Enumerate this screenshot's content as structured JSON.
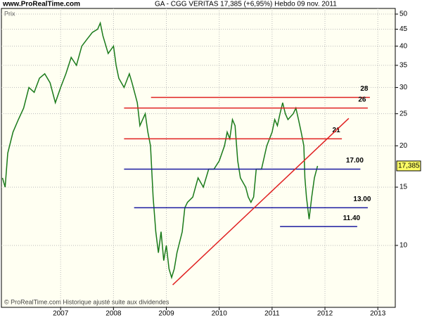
{
  "chart_data": {
    "type": "line",
    "site": "www.ProRealTime.com",
    "title": "GA - CGG VERITAS   17,385 (+6,95%)   Hebdo  09 nov. 2011",
    "y_label": "Prix",
    "footer": "© ProRealTime.com Historique ajusté suite aux dividendes",
    "log_y": true,
    "grid": true,
    "xlim": [
      2005.88,
      2013.33
    ],
    "xticks": [
      2007,
      2008,
      2009,
      2010,
      2011,
      2012,
      2013
    ],
    "ylim": [
      6.5,
      52
    ],
    "yticks": [
      10,
      15,
      20,
      25,
      30,
      35,
      40,
      45,
      50
    ],
    "series": [
      {
        "color": "#1a7a1a",
        "x": [
          2005.9,
          2005.95,
          2006.0,
          2006.1,
          2006.2,
          2006.3,
          2006.4,
          2006.5,
          2006.6,
          2006.7,
          2006.8,
          2006.9,
          2007.0,
          2007.1,
          2007.2,
          2007.3,
          2007.4,
          2007.5,
          2007.6,
          2007.7,
          2007.75,
          2007.8,
          2007.9,
          2008.0,
          2008.05,
          2008.1,
          2008.2,
          2008.3,
          2008.35,
          2008.45,
          2008.5,
          2008.6,
          2008.65,
          2008.7,
          2008.75,
          2008.8,
          2008.85,
          2008.9,
          2008.95,
          2009.0,
          2009.05,
          2009.1,
          2009.15,
          2009.2,
          2009.3,
          2009.35,
          2009.4,
          2009.5,
          2009.6,
          2009.7,
          2009.8,
          2009.9,
          2010.0,
          2010.1,
          2010.15,
          2010.2,
          2010.25,
          2010.3,
          2010.35,
          2010.4,
          2010.5,
          2010.55,
          2010.6,
          2010.65,
          2010.7,
          2010.8,
          2010.9,
          2011.0,
          2011.05,
          2011.1,
          2011.15,
          2011.2,
          2011.25,
          2011.3,
          2011.4,
          2011.45,
          2011.5,
          2011.55,
          2011.6,
          2011.62,
          2011.65,
          2011.7,
          2011.75,
          2011.8,
          2011.86
        ],
        "values": [
          16,
          15,
          19,
          22,
          24,
          26,
          30,
          29,
          32,
          33,
          31,
          27,
          30,
          33,
          37,
          35,
          40,
          42,
          44,
          45,
          47,
          43,
          38,
          40,
          35,
          32,
          30,
          33,
          31,
          27,
          23,
          25,
          22,
          20,
          14,
          11,
          9.5,
          11,
          9,
          10,
          8.5,
          8,
          8.5,
          9.5,
          11,
          13,
          13.5,
          14,
          16,
          15,
          17,
          17,
          18,
          20,
          22,
          21,
          24,
          23,
          18,
          16,
          15,
          14,
          13.5,
          14,
          17,
          17,
          20,
          22,
          24,
          23,
          25,
          27,
          25,
          24,
          25,
          26,
          24,
          22,
          20,
          16,
          14,
          12,
          14,
          16,
          17.385
        ]
      }
    ],
    "last_price": {
      "value": 17.385,
      "label": "17,385"
    },
    "levels": [
      {
        "value": 28,
        "label": "28",
        "color": "#e02020",
        "x": [
          2008.71,
          2012.85
        ]
      },
      {
        "value": 26,
        "label": "26",
        "color": "#e02020",
        "x": [
          2008.2,
          2012.81
        ]
      },
      {
        "value": 21,
        "label": "21",
        "color": "#e02020",
        "x": [
          2008.2,
          2012.32
        ]
      },
      {
        "value": 17,
        "label": "17.00",
        "color": "#1a1aa0",
        "x": [
          2008.2,
          2012.67
        ]
      },
      {
        "value": 13,
        "label": "13.00",
        "color": "#1a1aa0",
        "x": [
          2008.39,
          2012.81
        ]
      },
      {
        "value": 11.4,
        "label": "11.40",
        "color": "#1a1aa0",
        "x": [
          2011.15,
          2012.61
        ]
      }
    ],
    "trendline": {
      "color": "#e02020",
      "x": [
        2009.12,
        2012.45
      ],
      "values": [
        7.6,
        24.2
      ]
    }
  }
}
